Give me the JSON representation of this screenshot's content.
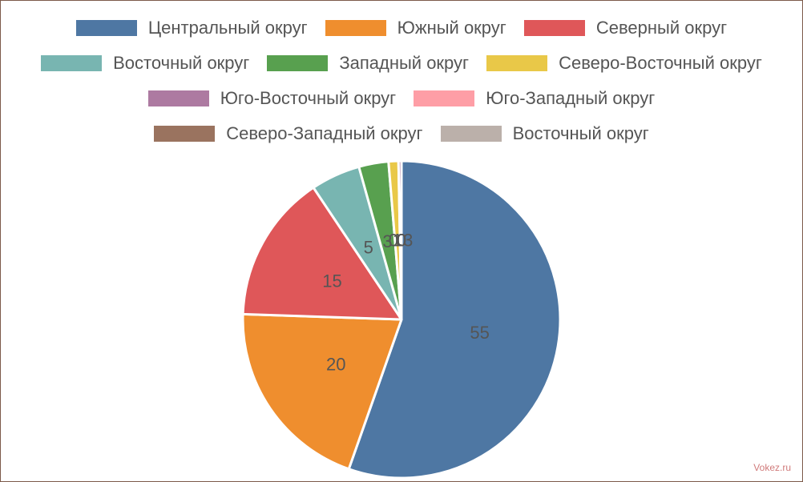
{
  "chart_data": {
    "type": "pie",
    "series": [
      {
        "name": "Центральный округ",
        "value": 55,
        "label": "55",
        "color": "#4e77a3"
      },
      {
        "name": "Южный округ",
        "value": 20,
        "label": "20",
        "color": "#ef8e2e"
      },
      {
        "name": "Северный округ",
        "value": 15,
        "label": "15",
        "color": "#df5759"
      },
      {
        "name": "Восточный округ",
        "value": 5,
        "label": "5",
        "color": "#78b5b1"
      },
      {
        "name": "Западный округ",
        "value": 3,
        "label": "3",
        "color": "#58a04f"
      },
      {
        "name": "Северо-Восточный округ",
        "value": 1,
        "label": "1",
        "color": "#e9c848"
      },
      {
        "name": "Юго-Восточный округ",
        "value": 0.3,
        "label": "0.3",
        "color": "#ad7aa1"
      },
      {
        "name": "Юго-Западный округ",
        "value": 0,
        "label": "0",
        "color": "#fe9ea6"
      },
      {
        "name": "Северо-Западный округ",
        "value": 0,
        "label": "0",
        "color": "#9a735f"
      },
      {
        "name": "Восточный округ",
        "value": 0,
        "label": "0",
        "color": "#bbb0aa"
      }
    ],
    "legend_position": "top"
  },
  "watermark": "Vokez.ru"
}
